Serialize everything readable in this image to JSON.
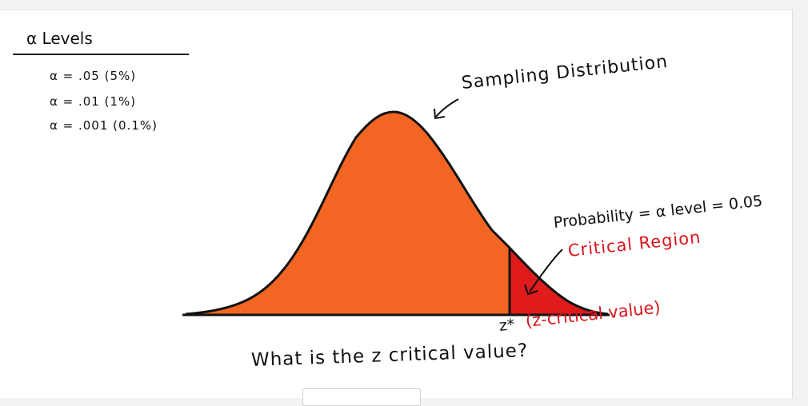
{
  "alpha_levels": {
    "title": "α Levels",
    "items": [
      "α = .05 (5%)",
      "α = .01 (1%)",
      "α = .001 (0.1%)"
    ]
  },
  "labels": {
    "sampling_distribution": "Sampling Distribution",
    "probability": "Probability = α level = 0.05",
    "critical_region": "Critical Region",
    "z_star": "z*",
    "z_critical_value": "(z-critical value)"
  },
  "question": "What is the z critical value?",
  "colors": {
    "curve_fill": "#f26522",
    "critical_fill": "#e01b1b",
    "critical_text": "#d9151b",
    "ink": "#111111"
  }
}
